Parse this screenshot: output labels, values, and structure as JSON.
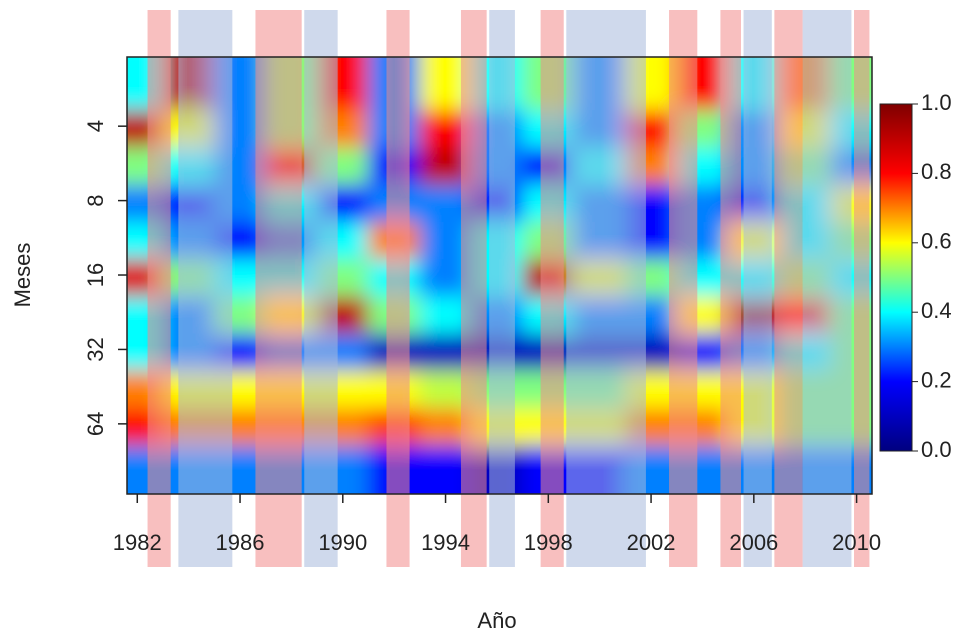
{
  "chart_data": {
    "type": "heatmap",
    "x_label": "Año",
    "y_label": "Meses",
    "x": [
      1982,
      1984,
      1986,
      1988,
      1990,
      1992,
      1994,
      1996,
      1998,
      2000,
      2002,
      2004,
      2006,
      2008,
      2010
    ],
    "y": [
      3,
      4,
      6,
      8,
      12,
      16,
      24,
      32,
      48,
      64,
      96
    ],
    "z": [
      [
        0.4,
        0.9,
        0.3,
        0.5,
        0.8,
        0.3,
        0.6,
        0.4,
        0.5,
        0.3,
        0.6,
        0.8,
        0.4,
        0.7,
        0.5
      ],
      [
        0.9,
        0.6,
        0.3,
        0.5,
        0.7,
        0.3,
        0.8,
        0.3,
        0.4,
        0.3,
        0.8,
        0.5,
        0.3,
        0.6,
        0.4
      ],
      [
        0.5,
        0.4,
        0.3,
        0.85,
        0.5,
        0.2,
        0.9,
        0.3,
        0.2,
        0.4,
        0.7,
        0.4,
        0.3,
        0.5,
        0.3
      ],
      [
        0.3,
        0.2,
        0.3,
        0.4,
        0.2,
        0.3,
        0.3,
        0.2,
        0.4,
        0.3,
        0.2,
        0.3,
        0.2,
        0.4,
        0.6
      ],
      [
        0.4,
        0.3,
        0.2,
        0.3,
        0.4,
        0.7,
        0.3,
        0.4,
        0.5,
        0.3,
        0.2,
        0.3,
        0.6,
        0.4,
        0.5
      ],
      [
        0.85,
        0.5,
        0.4,
        0.4,
        0.5,
        0.4,
        0.3,
        0.4,
        0.9,
        0.6,
        0.5,
        0.4,
        0.4,
        0.5,
        0.4
      ],
      [
        0.4,
        0.3,
        0.5,
        0.6,
        0.9,
        0.5,
        0.4,
        0.3,
        0.4,
        0.3,
        0.3,
        0.6,
        0.95,
        0.8,
        0.5
      ],
      [
        0.4,
        0.3,
        0.2,
        0.3,
        0.3,
        0.1,
        0.1,
        0.1,
        0.1,
        0.1,
        0.1,
        0.2,
        0.3,
        0.4,
        0.5
      ],
      [
        0.7,
        0.6,
        0.6,
        0.6,
        0.6,
        0.6,
        0.55,
        0.5,
        0.5,
        0.5,
        0.6,
        0.6,
        0.6,
        0.5,
        0.5
      ],
      [
        0.8,
        0.7,
        0.7,
        0.7,
        0.7,
        0.75,
        0.7,
        0.6,
        0.6,
        0.6,
        0.7,
        0.7,
        0.6,
        0.5,
        0.5
      ],
      [
        0.3,
        0.3,
        0.3,
        0.3,
        0.3,
        0.2,
        0.2,
        0.1,
        0.2,
        0.2,
        0.3,
        0.3,
        0.3,
        0.3,
        0.3
      ]
    ],
    "xlim": [
      1981.6,
      2010.6
    ],
    "xticks": [
      1982,
      1986,
      1990,
      1994,
      1998,
      2002,
      2006,
      2010
    ],
    "ylim": [
      2.1,
      123
    ],
    "yticks": [
      4,
      8,
      16,
      32,
      64
    ],
    "y_scale": "log",
    "zlim": [
      0,
      1
    ],
    "zticks": [
      {
        "value": 0,
        "label": "0.0"
      },
      0.2,
      0.4,
      0.6,
      0.8,
      {
        "value": 1,
        "label": "1.0"
      }
    ],
    "colormap": [
      "#00007f",
      "#0000ff",
      "#00ffff",
      "#ffff00",
      "#ff0000",
      "#7f0000"
    ],
    "bands": [
      {
        "start": 1982.4,
        "end": 1983.3,
        "color": "#f28b8b"
      },
      {
        "start": 1983.6,
        "end": 1985.7,
        "color": "#a7b9dd"
      },
      {
        "start": 1986.6,
        "end": 1988.4,
        "color": "#f28b8b"
      },
      {
        "start": 1988.5,
        "end": 1989.8,
        "color": "#a7b9dd"
      },
      {
        "start": 1991.7,
        "end": 1992.6,
        "color": "#f28b8b"
      },
      {
        "start": 1994.6,
        "end": 1995.6,
        "color": "#f28b8b"
      },
      {
        "start": 1995.7,
        "end": 1996.7,
        "color": "#a7b9dd"
      },
      {
        "start": 1997.7,
        "end": 1998.6,
        "color": "#f28b8b"
      },
      {
        "start": 1998.7,
        "end": 2001.8,
        "color": "#a7b9dd"
      },
      {
        "start": 2002.7,
        "end": 2003.8,
        "color": "#f28b8b"
      },
      {
        "start": 2004.7,
        "end": 2005.5,
        "color": "#f28b8b"
      },
      {
        "start": 2005.6,
        "end": 2006.7,
        "color": "#a7b9dd"
      },
      {
        "start": 2006.8,
        "end": 2007.9,
        "color": "#f28b8b"
      },
      {
        "start": 2007.9,
        "end": 2009.8,
        "color": "#a7b9dd"
      },
      {
        "start": 2009.9,
        "end": 2010.5,
        "color": "#f28b8b"
      }
    ]
  }
}
